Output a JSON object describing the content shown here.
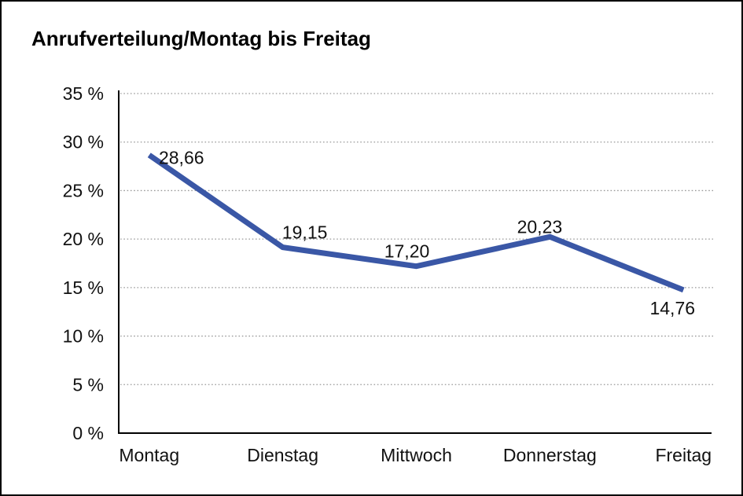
{
  "chart_data": {
    "type": "line",
    "title": "Anrufverteilung/Montag bis Freitag",
    "categories": [
      "Montag",
      "Dienstag",
      "Mittwoch",
      "Donnerstag",
      "Freitag"
    ],
    "values": [
      28.66,
      19.15,
      17.2,
      20.23,
      14.76
    ],
    "data_labels": [
      "28,66",
      "19,15",
      "17,20",
      "20,23",
      "14,76"
    ],
    "ytick_labels": [
      "0 %",
      "5 %",
      "10 %",
      "15 %",
      "20 %",
      "25 %",
      "30 %",
      "35 %"
    ],
    "ylim": [
      0,
      35
    ],
    "ytick_step": 5,
    "xlabel": "",
    "ylabel": "",
    "grid": "horizontal-dotted",
    "legend": "none",
    "colors": {
      "line": "#3A57A6",
      "grid": "#999999",
      "axis": "#000000",
      "text": "#111111",
      "background": "#ffffff",
      "border": "#000000"
    }
  }
}
